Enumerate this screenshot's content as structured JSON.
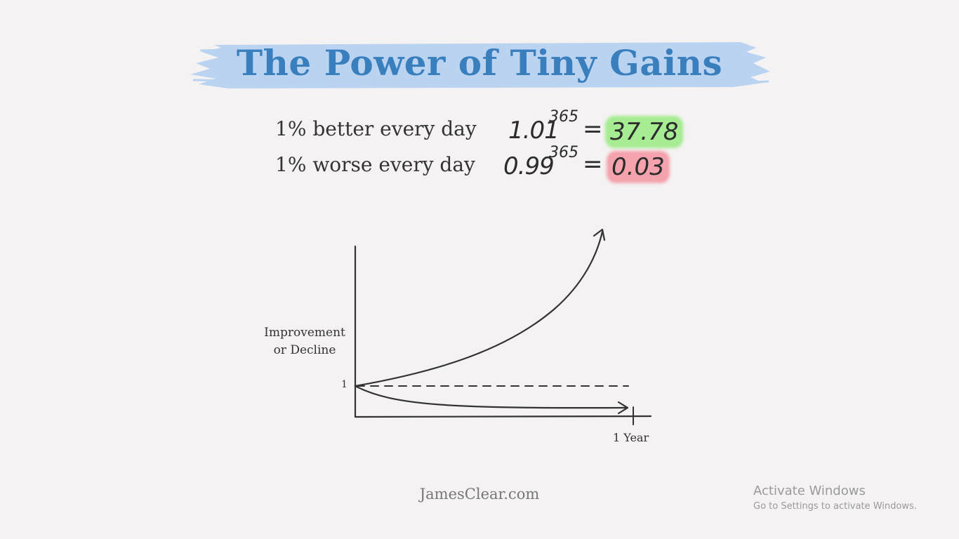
{
  "title": "The Power of Tiny Gains",
  "colors": {
    "title": "#3a7fbd",
    "brush": "#b9d3f1",
    "good_highlight": "#a6ec93",
    "bad_highlight": "#f4a3ad"
  },
  "equations": {
    "better": {
      "label": "1% better every day",
      "base": "1.01",
      "exponent": "365",
      "sign": "=",
      "result": "37.78"
    },
    "worse": {
      "label": "1% worse every day",
      "base": "0.99",
      "exponent": "365",
      "sign": "=",
      "result": "0.03"
    }
  },
  "graph": {
    "ylabel_line1": "Improvement",
    "ylabel_line2": "or Decline",
    "ytick": "1",
    "xtick": "1 Year"
  },
  "footer": "JamesClear.com",
  "windows_watermark": {
    "title": "Activate Windows",
    "subtitle": "Go to Settings to activate Windows."
  }
}
